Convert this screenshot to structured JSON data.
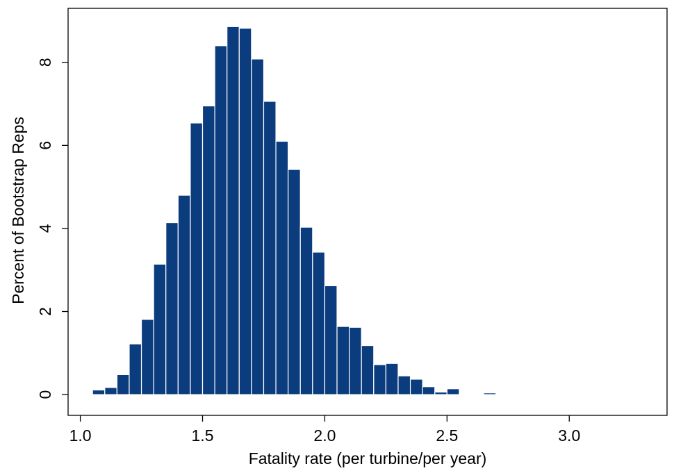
{
  "chart_data": {
    "type": "bar",
    "title": "",
    "xlabel": "Fatality rate (per turbine/per year)",
    "ylabel": "Percent of Bootstrap Reps",
    "xlim": [
      0.95,
      3.4
    ],
    "ylim": [
      -0.5,
      9.3
    ],
    "xticks": [
      1.0,
      1.5,
      2.0,
      2.5,
      3.0
    ],
    "xtick_labels": [
      "1.0",
      "1.5",
      "2.0",
      "2.5",
      "3.0"
    ],
    "yticks": [
      0,
      2,
      4,
      6,
      8
    ],
    "ytick_labels": [
      "0",
      "2",
      "4",
      "6",
      "8"
    ],
    "grid": false,
    "legend": "none",
    "bar_color": "#0b3c7d",
    "bar_edge_color": "#ffffff",
    "bin_width": 0.05,
    "bins": [
      {
        "x": 1.025,
        "value": 0.01
      },
      {
        "x": 1.075,
        "value": 0.11
      },
      {
        "x": 1.125,
        "value": 0.17
      },
      {
        "x": 1.175,
        "value": 0.48
      },
      {
        "x": 1.225,
        "value": 1.22
      },
      {
        "x": 1.275,
        "value": 1.81
      },
      {
        "x": 1.325,
        "value": 3.14
      },
      {
        "x": 1.375,
        "value": 4.14
      },
      {
        "x": 1.425,
        "value": 4.8
      },
      {
        "x": 1.475,
        "value": 6.54
      },
      {
        "x": 1.525,
        "value": 6.95
      },
      {
        "x": 1.575,
        "value": 8.4
      },
      {
        "x": 1.625,
        "value": 8.86
      },
      {
        "x": 1.675,
        "value": 8.82
      },
      {
        "x": 1.725,
        "value": 8.08
      },
      {
        "x": 1.775,
        "value": 7.06
      },
      {
        "x": 1.825,
        "value": 6.1
      },
      {
        "x": 1.875,
        "value": 5.42
      },
      {
        "x": 1.925,
        "value": 4.03
      },
      {
        "x": 1.975,
        "value": 3.43
      },
      {
        "x": 2.025,
        "value": 2.62
      },
      {
        "x": 2.075,
        "value": 1.64
      },
      {
        "x": 2.125,
        "value": 1.62
      },
      {
        "x": 2.175,
        "value": 1.18
      },
      {
        "x": 2.225,
        "value": 0.72
      },
      {
        "x": 2.275,
        "value": 0.75
      },
      {
        "x": 2.325,
        "value": 0.45
      },
      {
        "x": 2.375,
        "value": 0.37
      },
      {
        "x": 2.425,
        "value": 0.19
      },
      {
        "x": 2.475,
        "value": 0.06
      },
      {
        "x": 2.525,
        "value": 0.14
      },
      {
        "x": 2.625,
        "value": 0.02
      },
      {
        "x": 2.675,
        "value": 0.04
      }
    ]
  }
}
